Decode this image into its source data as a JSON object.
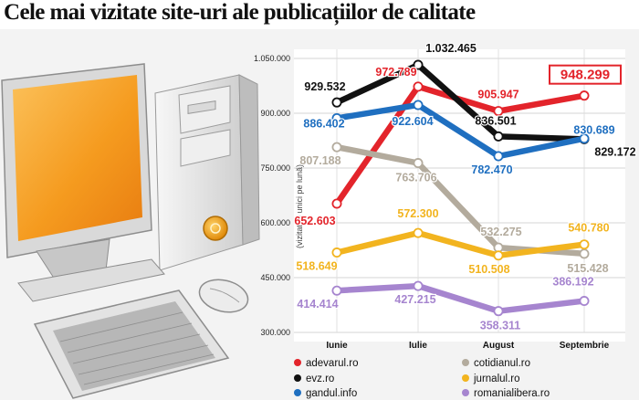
{
  "page_title": "Cele mai vizitate site-uri ale publicațiilor de calitate",
  "chart_data": {
    "type": "line",
    "title": "Cele mai vizitate site-uri ale publicațiilor de calitate",
    "ylabel": "(vizitatori unici pe lună)",
    "categories": [
      "Iunie",
      "Iulie",
      "August",
      "Septembrie"
    ],
    "ylim": [
      300000,
      1050000
    ],
    "yticks": [
      300000,
      450000,
      600000,
      750000,
      900000,
      1050000
    ],
    "ytick_labels": [
      "300.000",
      "450.000",
      "600.000",
      "750.000",
      "900.000",
      "1.050.000"
    ],
    "grid": true,
    "legend_position": "bottom",
    "series": [
      {
        "name": "adevarul.ro",
        "color": "#e3242b",
        "values": [
          652603,
          972789,
          905947,
          948299
        ],
        "labels": [
          "652.603",
          "972.789",
          "905.947",
          "948.299"
        ]
      },
      {
        "name": "evz.ro",
        "color": "#111111",
        "values": [
          929532,
          1032465,
          836501,
          829172
        ],
        "labels": [
          "929.532",
          "1.032.465",
          "836.501",
          "829.172"
        ]
      },
      {
        "name": "gandul.info",
        "color": "#1f6fc0",
        "values": [
          886402,
          922604,
          782470,
          830689
        ],
        "labels": [
          "886.402",
          "922.604",
          "782.470",
          "830.689"
        ]
      },
      {
        "name": "cotidianul.ro",
        "color": "#b3ab9d",
        "values": [
          807188,
          763706,
          532275,
          515428
        ],
        "labels": [
          "807.188",
          "763.706",
          "532.275",
          "515.428"
        ]
      },
      {
        "name": "jurnalul.ro",
        "color": "#f2b41f",
        "values": [
          518649,
          572300,
          510508,
          540780
        ],
        "labels": [
          "518.649",
          "572.300",
          "510.508",
          "540.780"
        ]
      },
      {
        "name": "romanialibera.ro",
        "color": "#a685cf",
        "values": [
          414414,
          427215,
          358311,
          386192
        ],
        "labels": [
          "414.414",
          "427.215",
          "358.311",
          "386.192"
        ]
      }
    ]
  },
  "colors": {
    "computer_screen": "#f59b1f",
    "computer_body": "#e3e3e3",
    "highlight_box": "#e3242b"
  }
}
